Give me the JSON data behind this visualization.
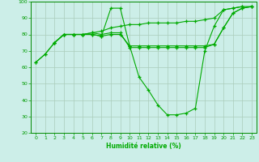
{
  "xlabel": "Humidité relative (%)",
  "background_color": "#cceee8",
  "grid_color": "#aaccbb",
  "line_color": "#00aa00",
  "xlim": [
    -0.5,
    23.5
  ],
  "ylim": [
    20,
    100
  ],
  "yticks": [
    20,
    30,
    40,
    50,
    60,
    70,
    80,
    90,
    100
  ],
  "xticks": [
    0,
    1,
    2,
    3,
    4,
    5,
    6,
    7,
    8,
    9,
    10,
    11,
    12,
    13,
    14,
    15,
    16,
    17,
    18,
    19,
    20,
    21,
    22,
    23
  ],
  "series1_x": [
    0,
    1,
    2,
    3,
    4,
    5,
    6,
    7,
    8,
    9,
    10,
    11,
    12,
    13,
    14,
    15,
    16,
    17,
    18,
    19,
    20,
    21,
    22
  ],
  "series1_y": [
    63,
    68,
    75,
    80,
    80,
    80,
    80,
    79,
    96,
    96,
    73,
    54,
    46,
    37,
    31,
    31,
    32,
    35,
    70,
    85,
    95,
    96,
    97
  ],
  "series2_x": [
    0,
    1,
    2,
    3,
    4,
    5,
    6,
    7,
    8,
    9,
    10,
    11,
    12,
    13,
    14,
    15,
    16,
    17,
    18,
    19,
    20,
    21,
    22,
    23
  ],
  "series2_y": [
    63,
    68,
    75,
    80,
    80,
    80,
    81,
    82,
    84,
    85,
    86,
    86,
    87,
    87,
    87,
    87,
    88,
    88,
    89,
    90,
    95,
    96,
    97,
    97
  ],
  "series3_x": [
    2,
    3,
    4,
    5,
    6,
    7,
    8,
    9,
    10,
    11,
    12,
    13,
    14,
    15,
    16,
    17,
    18,
    19,
    20,
    21,
    22,
    23
  ],
  "series3_y": [
    75,
    80,
    80,
    80,
    80,
    79,
    80,
    80,
    73,
    73,
    73,
    73,
    73,
    73,
    73,
    73,
    73,
    74,
    84,
    93,
    96,
    97
  ],
  "series4_x": [
    2,
    3,
    4,
    5,
    6,
    7,
    8,
    9,
    10,
    11,
    12,
    13,
    14,
    15,
    16,
    17,
    18,
    19,
    20,
    21,
    22,
    23
  ],
  "series4_y": [
    75,
    80,
    80,
    80,
    81,
    80,
    81,
    81,
    72,
    72,
    72,
    72,
    72,
    72,
    72,
    72,
    72,
    74,
    84,
    93,
    96,
    97
  ]
}
